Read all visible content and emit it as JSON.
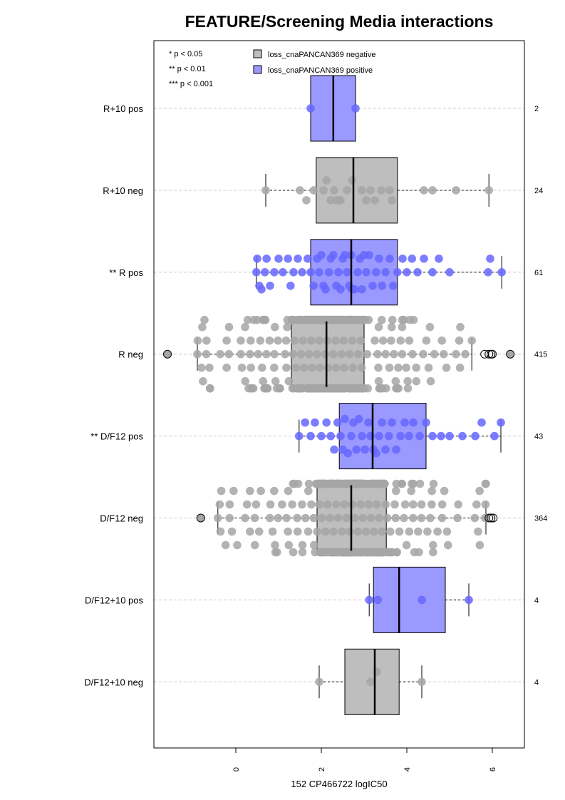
{
  "chart_data": {
    "type": "boxplot",
    "title": "FEATURE/Screening Media interactions",
    "xlabel": "152 CP466722 logIC50",
    "xlim": [
      -1.9,
      6.75
    ],
    "x_ticks": [
      0,
      2,
      4,
      6
    ],
    "x_tick_labels": [
      "0",
      "2",
      "4",
      "6"
    ],
    "orientation": "horizontal",
    "grid": "dashed horizontal lines at each group",
    "legend_position": "top",
    "significance_legend": [
      "* p < 0.05",
      "** p < 0.01",
      "*** p < 0.001"
    ],
    "legend": [
      {
        "name": "loss_cnaPANCAN369 negative",
        "color": "#bebebe"
      },
      {
        "name": "loss_cnaPANCAN369 positive",
        "color": "#9999ff"
      }
    ],
    "colors": {
      "negative_box": "#bebebe",
      "positive_box": "#9999ff",
      "negative_points": "#a6a6a6",
      "positive_points": "#6666ff"
    },
    "groups": [
      {
        "label": "R+10 pos",
        "n_label": "2",
        "status": "positive",
        "q1": 1.75,
        "median": 2.28,
        "q3": 2.8,
        "whisker_low": 1.75,
        "whisker_high": 2.8,
        "outliers": [],
        "points": [
          1.75,
          2.8
        ]
      },
      {
        "label": "R+10 neg",
        "n_label": "24",
        "status": "negative",
        "q1": 1.88,
        "median": 2.75,
        "q3": 3.78,
        "whisker_low": 0.7,
        "whisker_high": 5.92,
        "outliers": [],
        "points": [
          0.7,
          1.5,
          1.65,
          1.82,
          2.05,
          2.12,
          2.22,
          2.3,
          2.35,
          2.42,
          2.45,
          2.6,
          2.72,
          2.95,
          3.05,
          3.15,
          3.25,
          3.4,
          3.6,
          3.65,
          4.4,
          4.6,
          5.15,
          5.92
        ]
      },
      {
        "label": "** R pos",
        "n_label": "61",
        "status": "positive",
        "q1": 1.75,
        "median": 2.7,
        "q3": 3.78,
        "whisker_low": 0.48,
        "whisker_high": 6.22,
        "outliers": [],
        "points": [
          0.48,
          0.5,
          0.55,
          0.6,
          0.68,
          0.72,
          0.8,
          0.9,
          1.0,
          1.1,
          1.22,
          1.28,
          1.35,
          1.45,
          1.55,
          1.68,
          1.75,
          1.82,
          1.9,
          1.95,
          2.0,
          2.05,
          2.1,
          2.18,
          2.22,
          2.28,
          2.35,
          2.4,
          2.45,
          2.5,
          2.55,
          2.6,
          2.65,
          2.7,
          2.72,
          2.78,
          2.85,
          2.9,
          2.95,
          3.0,
          3.05,
          3.12,
          3.2,
          3.28,
          3.35,
          3.42,
          3.5,
          3.6,
          3.68,
          3.78,
          3.9,
          4.0,
          4.12,
          4.25,
          4.4,
          4.6,
          4.75,
          5.0,
          5.9,
          5.95,
          6.22
        ]
      },
      {
        "label": "R neg",
        "n_label": "415",
        "status": "negative",
        "q1": 1.3,
        "median": 2.12,
        "q3": 3.0,
        "whisker_low": -0.9,
        "whisker_high": 5.52,
        "outliers": [
          -1.6,
          5.82,
          5.92,
          5.97,
          6.0,
          6.42
        ],
        "n_points": 415,
        "point_range": [
          -0.9,
          5.52
        ]
      },
      {
        "label": "** D/F12 pos",
        "n_label": "43",
        "status": "positive",
        "q1": 2.42,
        "median": 3.2,
        "q3": 4.45,
        "whisker_low": 1.48,
        "whisker_high": 6.2,
        "outliers": [],
        "points": [
          1.48,
          1.62,
          1.75,
          1.85,
          2.0,
          2.12,
          2.22,
          2.3,
          2.38,
          2.45,
          2.5,
          2.55,
          2.62,
          2.7,
          2.75,
          2.82,
          2.88,
          2.95,
          3.02,
          3.1,
          3.15,
          3.22,
          3.28,
          3.35,
          3.42,
          3.5,
          3.58,
          3.65,
          3.75,
          3.85,
          3.95,
          4.05,
          4.15,
          4.3,
          4.45,
          4.6,
          4.8,
          5.0,
          5.3,
          5.6,
          5.75,
          6.05,
          6.2
        ]
      },
      {
        "label": "D/F12 neg",
        "n_label": "364",
        "status": "negative",
        "q1": 1.9,
        "median": 2.7,
        "q3": 3.52,
        "whisker_low": -0.42,
        "whisker_high": 5.85,
        "outliers": [
          -0.82,
          5.92,
          5.97,
          6.02
        ],
        "n_points": 364,
        "point_range": [
          -0.42,
          5.85
        ]
      },
      {
        "label": "D/F12+10 pos",
        "n_label": "4",
        "status": "positive",
        "q1": 3.22,
        "median": 3.82,
        "q3": 4.9,
        "whisker_low": 3.12,
        "whisker_high": 5.45,
        "outliers": [],
        "points": [
          3.12,
          3.32,
          4.35,
          5.45
        ]
      },
      {
        "label": "D/F12+10 neg",
        "n_label": "4",
        "status": "negative",
        "q1": 2.55,
        "median": 3.25,
        "q3": 3.82,
        "whisker_low": 1.95,
        "whisker_high": 4.35,
        "outliers": [],
        "points": [
          1.95,
          3.15,
          3.3,
          4.35
        ]
      }
    ]
  }
}
